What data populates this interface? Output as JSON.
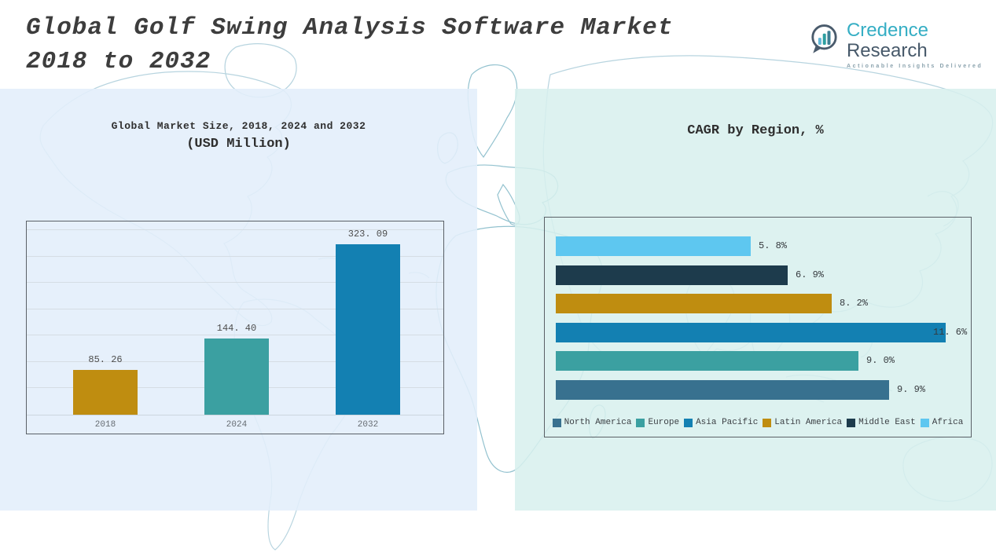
{
  "header": {
    "title_line1": "Global Golf Swing Analysis Software Market",
    "title_line2": "2018 to 2032",
    "logo": {
      "brand_primary": "Credence",
      "brand_secondary": "Research",
      "tagline": "Actionable Insights Delivered"
    }
  },
  "colors": {
    "gold": "#bf8d10",
    "teal": "#3ba0a1",
    "blue": "#1380b2",
    "steel_blue": "#38718f",
    "navy": "#1d3b4c",
    "light_blue": "#5ec7f0",
    "left_panel_bg": "#ebf2fa",
    "right_panel_bg": "#e2f1f0",
    "logo_teal": "#35aec4",
    "logo_slate": "#47596a"
  },
  "chart_data": [
    {
      "type": "bar",
      "title": "Global Market Size, 2018, 2024 and 2032",
      "subtitle": "(USD Million)",
      "categories": [
        "2018",
        "2024",
        "2032"
      ],
      "values": [
        85.26,
        144.4,
        323.09
      ],
      "value_labels": [
        "85. 26",
        "144. 40",
        "323. 09"
      ],
      "bar_colors": [
        "#bf8d10",
        "#3ba0a1",
        "#1380b2"
      ],
      "xlabel": "",
      "ylabel": "",
      "ylim": [
        0,
        368
      ],
      "grid": true,
      "gridline_step": 50,
      "legend_position": "none"
    },
    {
      "type": "bar",
      "orientation": "horizontal",
      "title": "CAGR by Region, %",
      "rows": [
        {
          "region": "Africa",
          "value": 5.8,
          "label": "5. 8%",
          "color": "#5ec7f0"
        },
        {
          "region": "Middle East",
          "value": 6.9,
          "label": "6. 9%",
          "color": "#1d3b4c"
        },
        {
          "region": "Latin America",
          "value": 8.2,
          "label": "8. 2%",
          "color": "#bf8d10"
        },
        {
          "region": "Asia Pacific",
          "value": 11.6,
          "label": "11. 6%",
          "color": "#1380b2"
        },
        {
          "region": "Europe",
          "value": 9.0,
          "label": "9. 0%",
          "color": "#3ba0a1"
        },
        {
          "region": "North America",
          "value": 9.9,
          "label": "9. 9%",
          "color": "#38718f"
        }
      ],
      "xlim": [
        0,
        12
      ],
      "grid": false,
      "legend_position": "bottom",
      "legend": [
        {
          "name": "North America",
          "color": "#38718f"
        },
        {
          "name": "Europe",
          "color": "#3ba0a1"
        },
        {
          "name": "Asia Pacific",
          "color": "#1380b2"
        },
        {
          "name": "Latin America",
          "color": "#bf8d10"
        },
        {
          "name": "Middle East",
          "color": "#1d3b4c"
        },
        {
          "name": "Africa",
          "color": "#5ec7f0"
        }
      ]
    }
  ]
}
